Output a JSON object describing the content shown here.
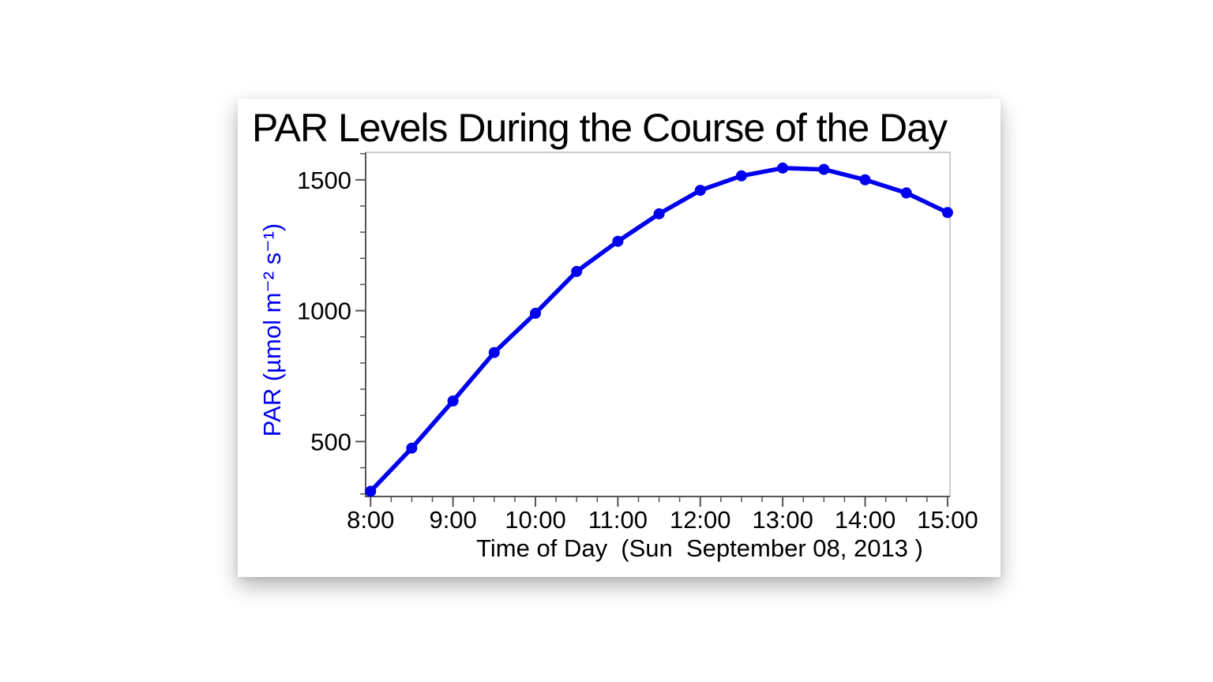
{
  "page": {
    "background": "#ffffff"
  },
  "chart_data": {
    "type": "line",
    "title": "PAR Levels During the Course of the Day",
    "xlabel": "Time of Day  (Sun  September 08, 2013 )",
    "ylabel": "PAR (µmol m⁻² s⁻¹)",
    "series": [
      {
        "name": "PAR",
        "x_times": [
          "8:00",
          "8:30",
          "9:00",
          "9:30",
          "10:00",
          "10:30",
          "11:00",
          "11:30",
          "12:00",
          "12:30",
          "13:00",
          "13:30",
          "14:00",
          "14:30",
          "15:00"
        ],
        "x_hours": [
          8,
          8.5,
          9,
          9.5,
          10,
          10.5,
          11,
          11.5,
          12,
          12.5,
          13,
          13.5,
          14,
          14.5,
          15
        ],
        "values": [
          310,
          475,
          655,
          840,
          990,
          1150,
          1265,
          1370,
          1460,
          1515,
          1545,
          1540,
          1500,
          1450,
          1375
        ]
      }
    ],
    "x_major_tick_labels": [
      "8:00",
      "9:00",
      "10:00",
      "11:00",
      "12:00",
      "13:00",
      "14:00",
      "15:00"
    ],
    "x_major_tick_hours": [
      8,
      9,
      10,
      11,
      12,
      13,
      14,
      15
    ],
    "x_minor_interval_hours": 0.25,
    "y_major_ticks": [
      500,
      1000,
      1500
    ],
    "y_minor_step": 100,
    "y_minor_min": 300,
    "y_minor_max": 1600,
    "xlim": [
      7.94,
      15.03
    ],
    "ylim": [
      290,
      1605
    ],
    "grid": false,
    "legend": "none",
    "line_color": "#0000EE",
    "marker": "circle",
    "axis_color": "#555555",
    "frame_color": "#bbbbbb",
    "tick_label_color": "#000000"
  }
}
